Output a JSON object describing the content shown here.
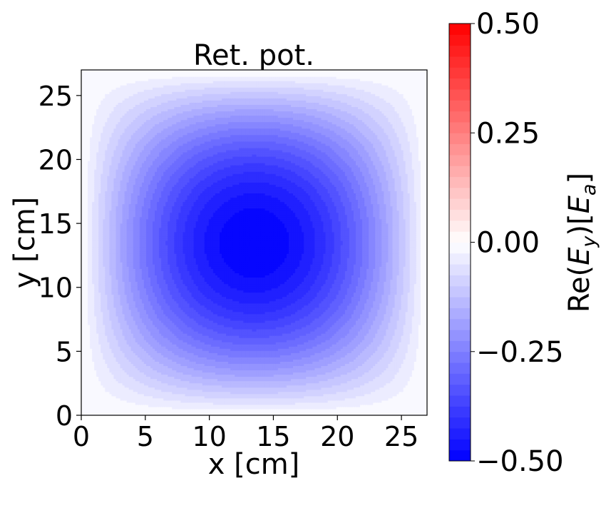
{
  "chart_data": {
    "type": "heatmap",
    "title": "Ret. pot.",
    "xlabel": "x [cm]",
    "ylabel": "y [cm]",
    "xlim": [
      0,
      27
    ],
    "ylim": [
      0,
      27
    ],
    "xticks": [
      0,
      5,
      10,
      15,
      20,
      25
    ],
    "yticks": [
      0,
      5,
      10,
      15,
      20,
      25
    ],
    "xtick_labels": [
      "0",
      "5",
      "10",
      "15",
      "20",
      "25"
    ],
    "ytick_labels": [
      "0",
      "5",
      "10",
      "15",
      "20",
      "25"
    ],
    "field": {
      "description": "Re(Ey) = -0.5 * sin(pi*x/27) * sin(pi*y/27), filled contours",
      "amplitude": -0.5,
      "period_x": 27,
      "period_y": 27,
      "peak": {
        "x": 13.5,
        "y": 13.5,
        "value": -0.5
      },
      "contour_levels": 40
    },
    "colorbar": {
      "label": "Re(E_y)[E_a]",
      "label_main": "Re(",
      "label_E": "E",
      "label_sub_y": "y",
      "label_mid": ")[",
      "label_sub_a": "a",
      "label_end": "]",
      "range": [
        -0.5,
        0.5
      ],
      "ticks": [
        -0.5,
        -0.25,
        0.0,
        0.25,
        0.5
      ],
      "tick_labels": [
        "−0.50",
        "−0.25",
        "0.00",
        "0.25",
        "0.50"
      ],
      "colormap": "bwr",
      "color_min": "#0000ff",
      "color_mid": "#ffffff",
      "color_max": "#ff0000",
      "levels": 40
    },
    "grid": false
  }
}
